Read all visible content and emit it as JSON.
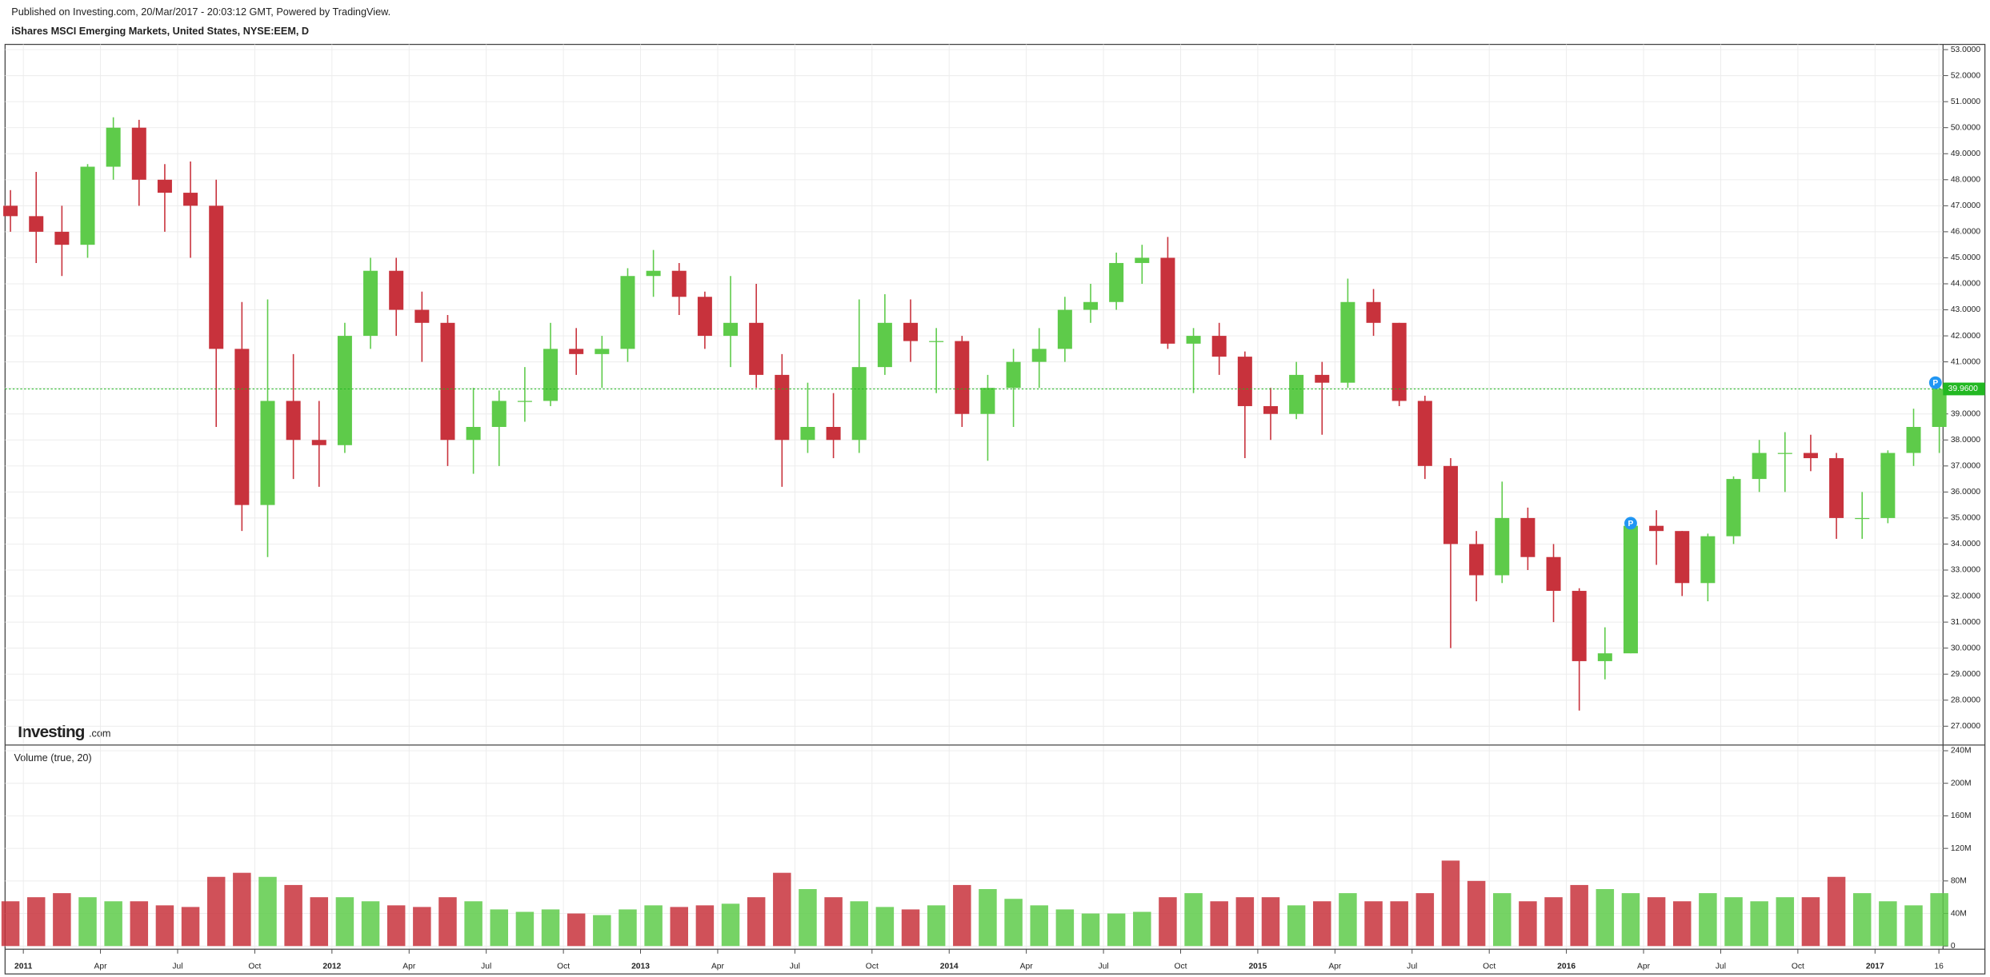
{
  "header": {
    "published": "Published on Investing.com, 20/Mar/2017 - 20:03:12 GMT, Powered by TradingView.",
    "title": "iShares MSCI Emerging Markets, United States, NYSE:EEM, D"
  },
  "logo": {
    "brand": "Investing",
    "suffix": ".com"
  },
  "chart_data": [
    {
      "type": "candlestick",
      "up_color": "#5ecb4a",
      "down_color": "#c8323c",
      "grid": true,
      "x": [
        "2010-12",
        "2011-01",
        "2011-02",
        "2011-03",
        "2011-04",
        "2011-05",
        "2011-06",
        "2011-07",
        "2011-08",
        "2011-09",
        "2011-10",
        "2011-11",
        "2011-12",
        "2012-01",
        "2012-02",
        "2012-03",
        "2012-04",
        "2012-05",
        "2012-06",
        "2012-07",
        "2012-08",
        "2012-09",
        "2012-10",
        "2012-11",
        "2012-12",
        "2013-01",
        "2013-02",
        "2013-03",
        "2013-04",
        "2013-05",
        "2013-06",
        "2013-07",
        "2013-08",
        "2013-09",
        "2013-10",
        "2013-11",
        "2013-12",
        "2014-01",
        "2014-02",
        "2014-03",
        "2014-04",
        "2014-05",
        "2014-06",
        "2014-07",
        "2014-08",
        "2014-09",
        "2014-10",
        "2014-11",
        "2014-12",
        "2015-01",
        "2015-02",
        "2015-03",
        "2015-04",
        "2015-05",
        "2015-06",
        "2015-07",
        "2015-08",
        "2015-09",
        "2015-10",
        "2015-11",
        "2015-12",
        "2016-01",
        "2016-02",
        "2016-03",
        "2016-04",
        "2016-05",
        "2016-06",
        "2016-07",
        "2016-08",
        "2016-09",
        "2016-10",
        "2016-11",
        "2016-12",
        "2017-01",
        "2017-02",
        "2017-03"
      ],
      "open": [
        47.0,
        46.6,
        46.0,
        45.5,
        48.5,
        50.0,
        48.0,
        47.5,
        47.0,
        41.5,
        35.5,
        39.5,
        38.0,
        37.8,
        42.0,
        44.5,
        43.0,
        42.5,
        38.0,
        38.5,
        39.5,
        39.5,
        41.5,
        41.3,
        41.5,
        44.3,
        44.5,
        43.5,
        42.0,
        42.5,
        40.5,
        38.0,
        38.5,
        38.0,
        40.8,
        42.5,
        41.8,
        41.8,
        39.0,
        40.0,
        41.0,
        41.5,
        43.0,
        43.3,
        44.8,
        45.0,
        41.7,
        42.0,
        41.2,
        39.3,
        39.0,
        40.5,
        40.2,
        43.3,
        42.5,
        39.5,
        37.0,
        34.0,
        32.8,
        35.0,
        33.5,
        32.2,
        29.5,
        29.8,
        34.7,
        34.5,
        32.5,
        34.3,
        36.5,
        37.5,
        37.5,
        37.3,
        35.0,
        35.0,
        37.5,
        38.5
      ],
      "high": [
        47.6,
        48.3,
        47.0,
        48.6,
        50.4,
        50.3,
        48.6,
        48.7,
        48.0,
        43.3,
        43.4,
        41.3,
        39.5,
        42.5,
        45.0,
        45.0,
        43.7,
        42.8,
        40.0,
        39.9,
        40.8,
        42.5,
        42.3,
        42.0,
        44.6,
        45.3,
        44.8,
        43.7,
        44.3,
        44.0,
        41.3,
        40.2,
        39.8,
        43.4,
        43.6,
        43.4,
        42.3,
        42.0,
        40.5,
        41.5,
        42.3,
        43.5,
        44.0,
        45.2,
        45.5,
        45.8,
        42.3,
        42.5,
        41.4,
        40.0,
        41.0,
        41.0,
        44.2,
        43.8,
        42.5,
        39.7,
        37.3,
        34.5,
        36.4,
        35.4,
        34.0,
        32.3,
        30.8,
        34.9,
        35.3,
        34.5,
        34.4,
        36.6,
        38.0,
        38.3,
        38.2,
        37.5,
        36.0,
        37.6,
        39.2,
        40.1
      ],
      "low": [
        46.0,
        44.8,
        44.3,
        45.0,
        48.0,
        47.0,
        46.0,
        45.0,
        38.5,
        34.5,
        33.5,
        36.5,
        36.2,
        37.5,
        41.5,
        42.0,
        41.0,
        37.0,
        36.7,
        37.0,
        38.7,
        39.3,
        40.5,
        40.0,
        41.0,
        43.5,
        42.8,
        41.5,
        40.8,
        40.0,
        36.2,
        37.5,
        37.3,
        37.5,
        40.5,
        41.0,
        39.8,
        38.5,
        37.2,
        38.5,
        40.0,
        41.0,
        42.5,
        43.0,
        44.0,
        41.5,
        39.8,
        40.5,
        37.3,
        38.0,
        38.8,
        38.2,
        40.0,
        42.0,
        39.3,
        36.5,
        30.0,
        31.8,
        32.5,
        33.0,
        31.0,
        27.6,
        28.8,
        29.8,
        33.2,
        32.0,
        31.8,
        34.0,
        36.0,
        36.0,
        36.8,
        34.2,
        34.2,
        34.8,
        37.0,
        37.5
      ],
      "close": [
        46.6,
        46.0,
        45.5,
        48.5,
        50.0,
        48.0,
        47.5,
        47.0,
        41.5,
        35.5,
        39.5,
        38.0,
        37.8,
        42.0,
        44.5,
        43.0,
        42.5,
        38.0,
        38.5,
        39.5,
        39.5,
        41.5,
        41.3,
        41.5,
        44.3,
        44.5,
        43.5,
        42.0,
        42.5,
        40.5,
        38.0,
        38.5,
        38.0,
        40.8,
        42.5,
        41.8,
        41.8,
        39.0,
        40.0,
        41.0,
        41.5,
        43.0,
        43.3,
        44.8,
        45.0,
        41.7,
        42.0,
        41.2,
        39.3,
        39.0,
        40.5,
        40.2,
        43.3,
        42.5,
        39.5,
        37.0,
        34.0,
        32.8,
        35.0,
        33.5,
        32.2,
        29.5,
        29.8,
        34.7,
        34.5,
        32.5,
        34.3,
        36.5,
        37.5,
        37.5,
        37.3,
        35.0,
        35.0,
        37.5,
        38.5,
        39.96
      ],
      "last_price": {
        "value": 39.96,
        "label": "39.9600"
      },
      "last_color": "#22b822",
      "markers": [
        {
          "x": "2016-03",
          "y": 34.8,
          "label": "P"
        },
        {
          "x": "2017-03",
          "y": 40.2,
          "label": "P"
        }
      ],
      "xlim": [
        "2010-12-10",
        "2017-03-21"
      ],
      "xticks": [
        {
          "value": "2011-01",
          "label": "2011"
        },
        {
          "value": "2011-04",
          "label": "Apr"
        },
        {
          "value": "2011-07",
          "label": "Jul"
        },
        {
          "value": "2011-10",
          "label": "Oct"
        },
        {
          "value": "2012-01",
          "label": "2012"
        },
        {
          "value": "2012-04",
          "label": "Apr"
        },
        {
          "value": "2012-07",
          "label": "Jul"
        },
        {
          "value": "2012-10",
          "label": "Oct"
        },
        {
          "value": "2013-01",
          "label": "2013"
        },
        {
          "value": "2013-04",
          "label": "Apr"
        },
        {
          "value": "2013-07",
          "label": "Jul"
        },
        {
          "value": "2013-10",
          "label": "Oct"
        },
        {
          "value": "2014-01",
          "label": "2014"
        },
        {
          "value": "2014-04",
          "label": "Apr"
        },
        {
          "value": "2014-07",
          "label": "Jul"
        },
        {
          "value": "2014-10",
          "label": "Oct"
        },
        {
          "value": "2015-01",
          "label": "2015"
        },
        {
          "value": "2015-04",
          "label": "Apr"
        },
        {
          "value": "2015-07",
          "label": "Jul"
        },
        {
          "value": "2015-10",
          "label": "Oct"
        },
        {
          "value": "2016-01",
          "label": "2016"
        },
        {
          "value": "2016-04",
          "label": "Apr"
        },
        {
          "value": "2016-07",
          "label": "Jul"
        },
        {
          "value": "2016-10",
          "label": "Oct"
        },
        {
          "value": "2017-01",
          "label": "2017"
        },
        {
          "value": "2017-03-16",
          "label": "16"
        }
      ],
      "ylim": [
        26.3,
        53.2
      ],
      "yticks": [
        {
          "value": 27,
          "label": "27.0000"
        },
        {
          "value": 28,
          "label": "28.0000"
        },
        {
          "value": 29,
          "label": "29.0000"
        },
        {
          "value": 30,
          "label": "30.0000"
        },
        {
          "value": 31,
          "label": "31.0000"
        },
        {
          "value": 32,
          "label": "32.0000"
        },
        {
          "value": 33,
          "label": "33.0000"
        },
        {
          "value": 34,
          "label": "34.0000"
        },
        {
          "value": 35,
          "label": "35.0000"
        },
        {
          "value": 36,
          "label": "36.0000"
        },
        {
          "value": 37,
          "label": "37.0000"
        },
        {
          "value": 38,
          "label": "38.0000"
        },
        {
          "value": 39,
          "label": "39.0000"
        },
        {
          "value": 40,
          "label": "40.0000"
        },
        {
          "value": 41,
          "label": "41.0000"
        },
        {
          "value": 42,
          "label": "42.0000"
        },
        {
          "value": 43,
          "label": "43.0000"
        },
        {
          "value": 44,
          "label": "44.0000"
        },
        {
          "value": 45,
          "label": "45.0000"
        },
        {
          "value": 46,
          "label": "46.0000"
        },
        {
          "value": 47,
          "label": "47.0000"
        },
        {
          "value": 48,
          "label": "48.0000"
        },
        {
          "value": 49,
          "label": "49.0000"
        },
        {
          "value": 50,
          "label": "50.0000"
        },
        {
          "value": 51,
          "label": "51.0000"
        },
        {
          "value": 52,
          "label": "52.0000"
        },
        {
          "value": 53,
          "label": "53.0000"
        }
      ]
    },
    {
      "type": "bar",
      "title": "Volume (true, 20)",
      "values": [
        55,
        60,
        65,
        60,
        55,
        55,
        50,
        48,
        85,
        90,
        85,
        75,
        60,
        60,
        55,
        50,
        48,
        60,
        55,
        45,
        42,
        45,
        40,
        38,
        45,
        50,
        48,
        50,
        52,
        60,
        90,
        70,
        60,
        55,
        48,
        45,
        50,
        75,
        70,
        58,
        50,
        45,
        40,
        40,
        42,
        60,
        65,
        55,
        60,
        60,
        50,
        55,
        65,
        55,
        55,
        65,
        105,
        80,
        65,
        55,
        60,
        75,
        70,
        65,
        60,
        55,
        65,
        60,
        55,
        60,
        60,
        85,
        65,
        55,
        50,
        65
      ],
      "ylim": [
        -2,
        243
      ],
      "yticks": [
        0,
        {
          "value": 40,
          "label": "40M"
        },
        {
          "value": 80,
          "label": "80M"
        },
        {
          "value": 120,
          "label": "120M"
        },
        {
          "value": 160,
          "label": "160M"
        },
        {
          "value": 200,
          "label": "200M"
        },
        {
          "value": 240,
          "label": "240M"
        }
      ]
    }
  ]
}
